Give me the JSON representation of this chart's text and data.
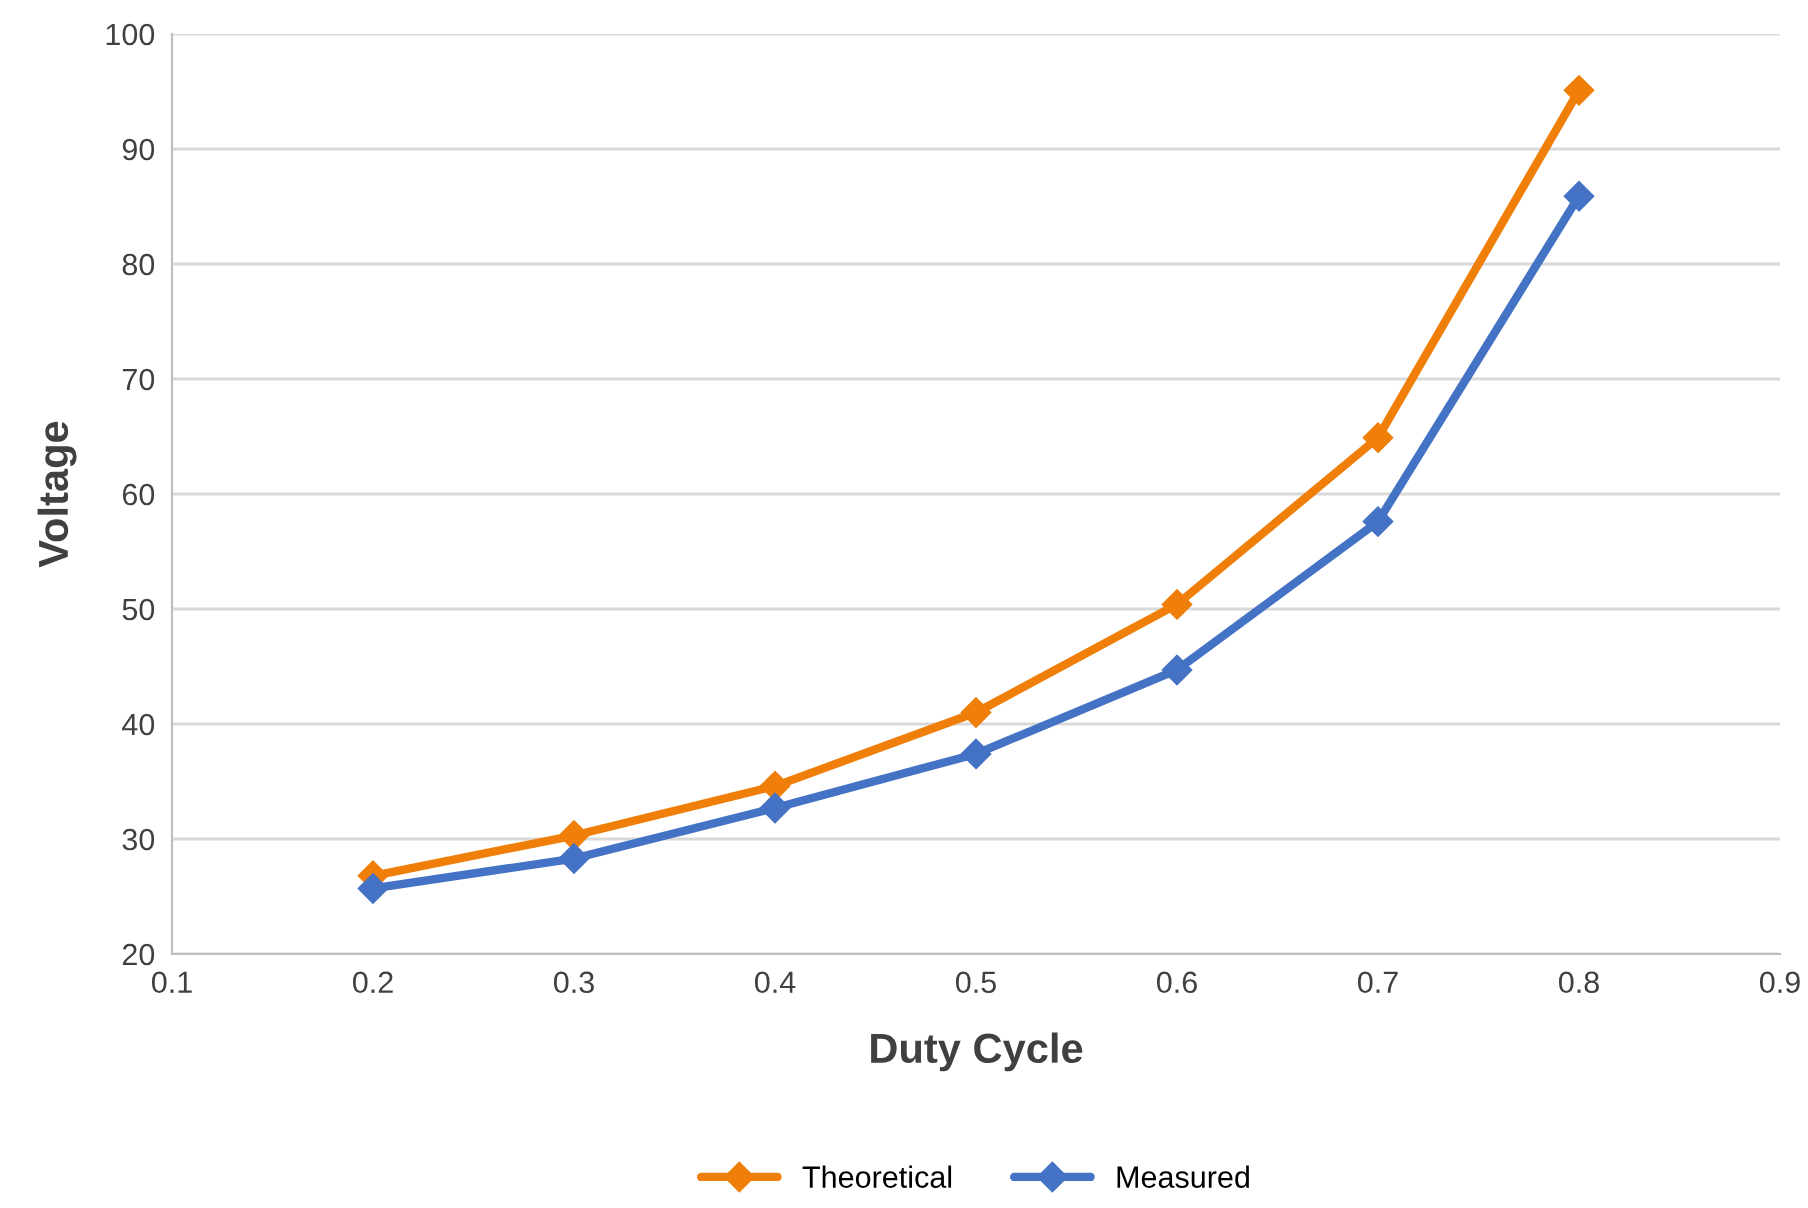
{
  "chart_data": {
    "type": "line",
    "xlabel": "Duty Cycle",
    "ylabel": "Voltage",
    "x": [
      0.2,
      0.3,
      0.4,
      0.5,
      0.6,
      0.7,
      0.8
    ],
    "series": [
      {
        "name": "Theoretical",
        "color": "#f07f09",
        "values": [
          26.8,
          30.3,
          34.6,
          41.0,
          50.4,
          64.9,
          95.1
        ]
      },
      {
        "name": "Measured",
        "color": "#4472c4",
        "values": [
          25.7,
          28.3,
          32.7,
          37.4,
          44.7,
          57.6,
          85.9
        ]
      }
    ],
    "xlim": [
      0.1,
      0.9
    ],
    "xticks": [
      0.1,
      0.2,
      0.3,
      0.4,
      0.5,
      0.6,
      0.7,
      0.8,
      0.9
    ],
    "ylim": [
      20,
      100
    ],
    "yticks": [
      20,
      30,
      40,
      50,
      60,
      70,
      80,
      90,
      100
    ],
    "grid": "y",
    "legend": "bottom",
    "marker": "diamond",
    "line_style": "solid"
  }
}
